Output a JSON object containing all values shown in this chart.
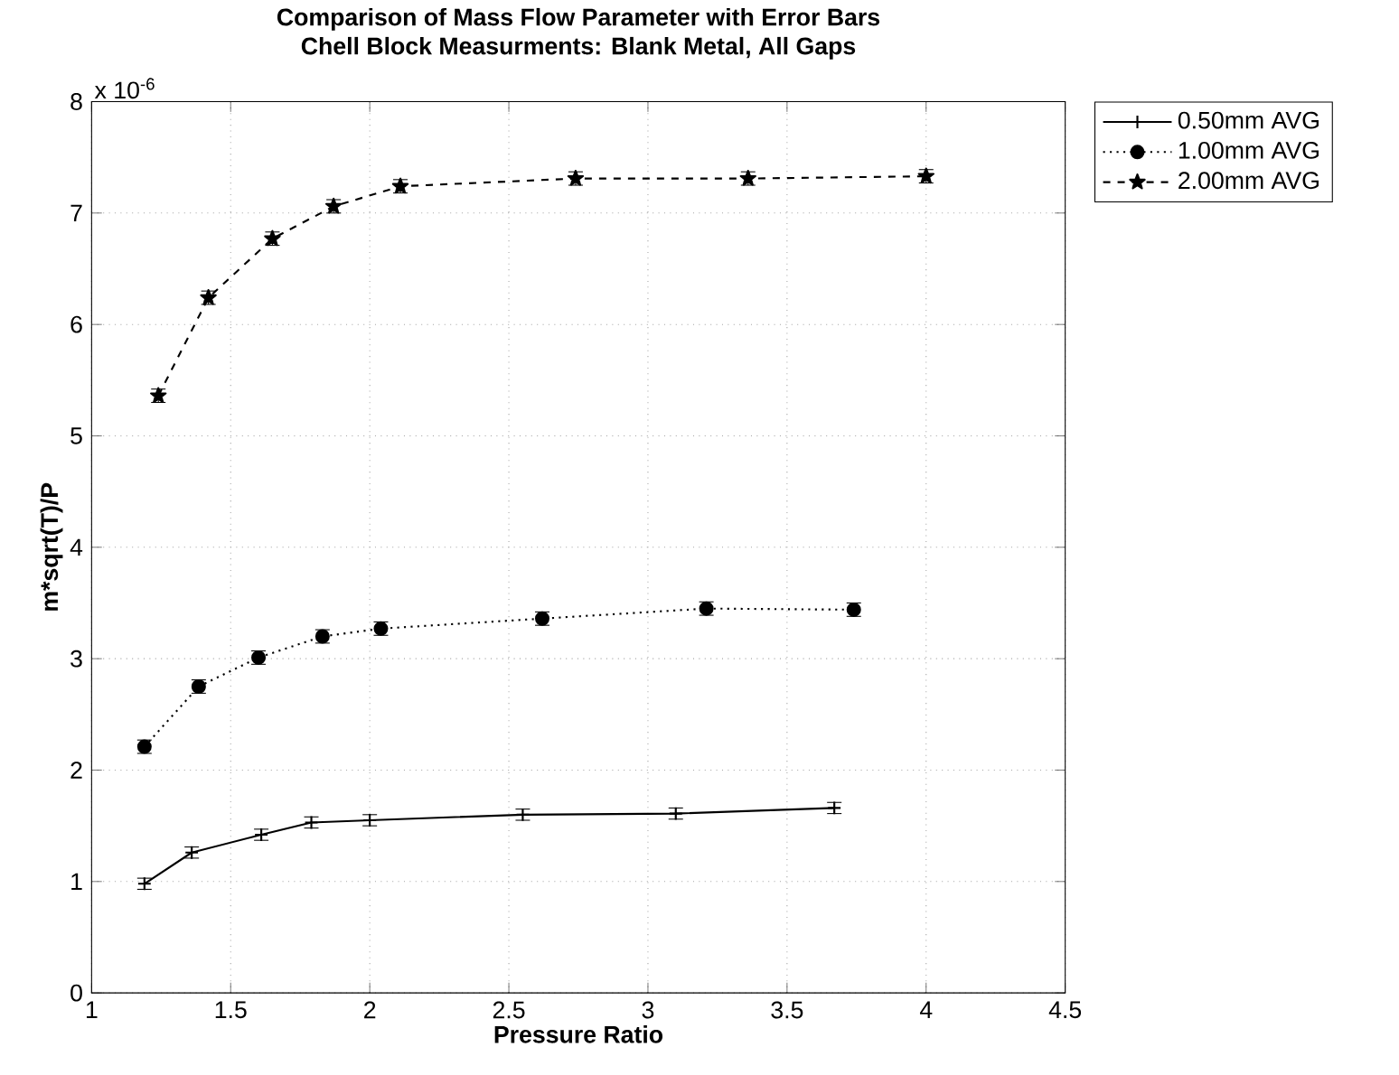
{
  "chart_data": {
    "type": "line",
    "title": "Comparison of Mass Flow Parameter with Error Bars",
    "subtitle": "Chell Block Measurments: Blank Metal, All Gaps",
    "xlabel": "Pressure Ratio",
    "ylabel": "m*sqrt(T)/P",
    "annotations": [
      "x 10$^{-6}$"
    ],
    "xlim": [
      1,
      4.5
    ],
    "xticks": [
      1,
      1.5,
      2,
      2.5,
      3,
      3.5,
      4,
      4.5
    ],
    "ylim": [
      0,
      8
    ],
    "yticks": [
      0,
      1,
      2,
      3,
      4,
      5,
      6,
      7,
      8
    ],
    "grid": true,
    "legend": "top right",
    "series": [
      {
        "name": "0.50mm AVG",
        "color": "#000000",
        "marker": "cross",
        "line_style": "solid",
        "x": [
          1.19,
          1.36,
          1.61,
          1.79,
          2.0,
          2.55,
          3.1,
          3.67
        ],
        "values": [
          0.98,
          1.26,
          1.42,
          1.53,
          1.55,
          1.6,
          1.61,
          1.66
        ],
        "errors": [
          0.05,
          0.05,
          0.05,
          0.05,
          0.05,
          0.05,
          0.05,
          0.05
        ]
      },
      {
        "name": "1.00mm AVG",
        "color": "#000000",
        "marker": "circle",
        "line_style": "dotted",
        "x": [
          1.19,
          1.385,
          1.6,
          1.83,
          2.04,
          2.62,
          3.21,
          3.74
        ],
        "values": [
          2.21,
          2.75,
          3.01,
          3.2,
          3.27,
          3.36,
          3.45,
          3.44
        ],
        "errors": [
          0.06,
          0.06,
          0.06,
          0.06,
          0.06,
          0.06,
          0.06,
          0.06
        ]
      },
      {
        "name": "2.00mm AVG",
        "color": "#000000",
        "marker": "star",
        "line_style": "dashed",
        "x": [
          1.24,
          1.42,
          1.65,
          1.87,
          2.11,
          2.74,
          3.36,
          4.0
        ],
        "values": [
          5.36,
          6.24,
          6.77,
          7.06,
          7.24,
          7.31,
          7.31,
          7.33
        ],
        "errors": [
          0.06,
          0.06,
          0.06,
          0.06,
          0.06,
          0.06,
          0.06,
          0.06
        ]
      }
    ]
  }
}
